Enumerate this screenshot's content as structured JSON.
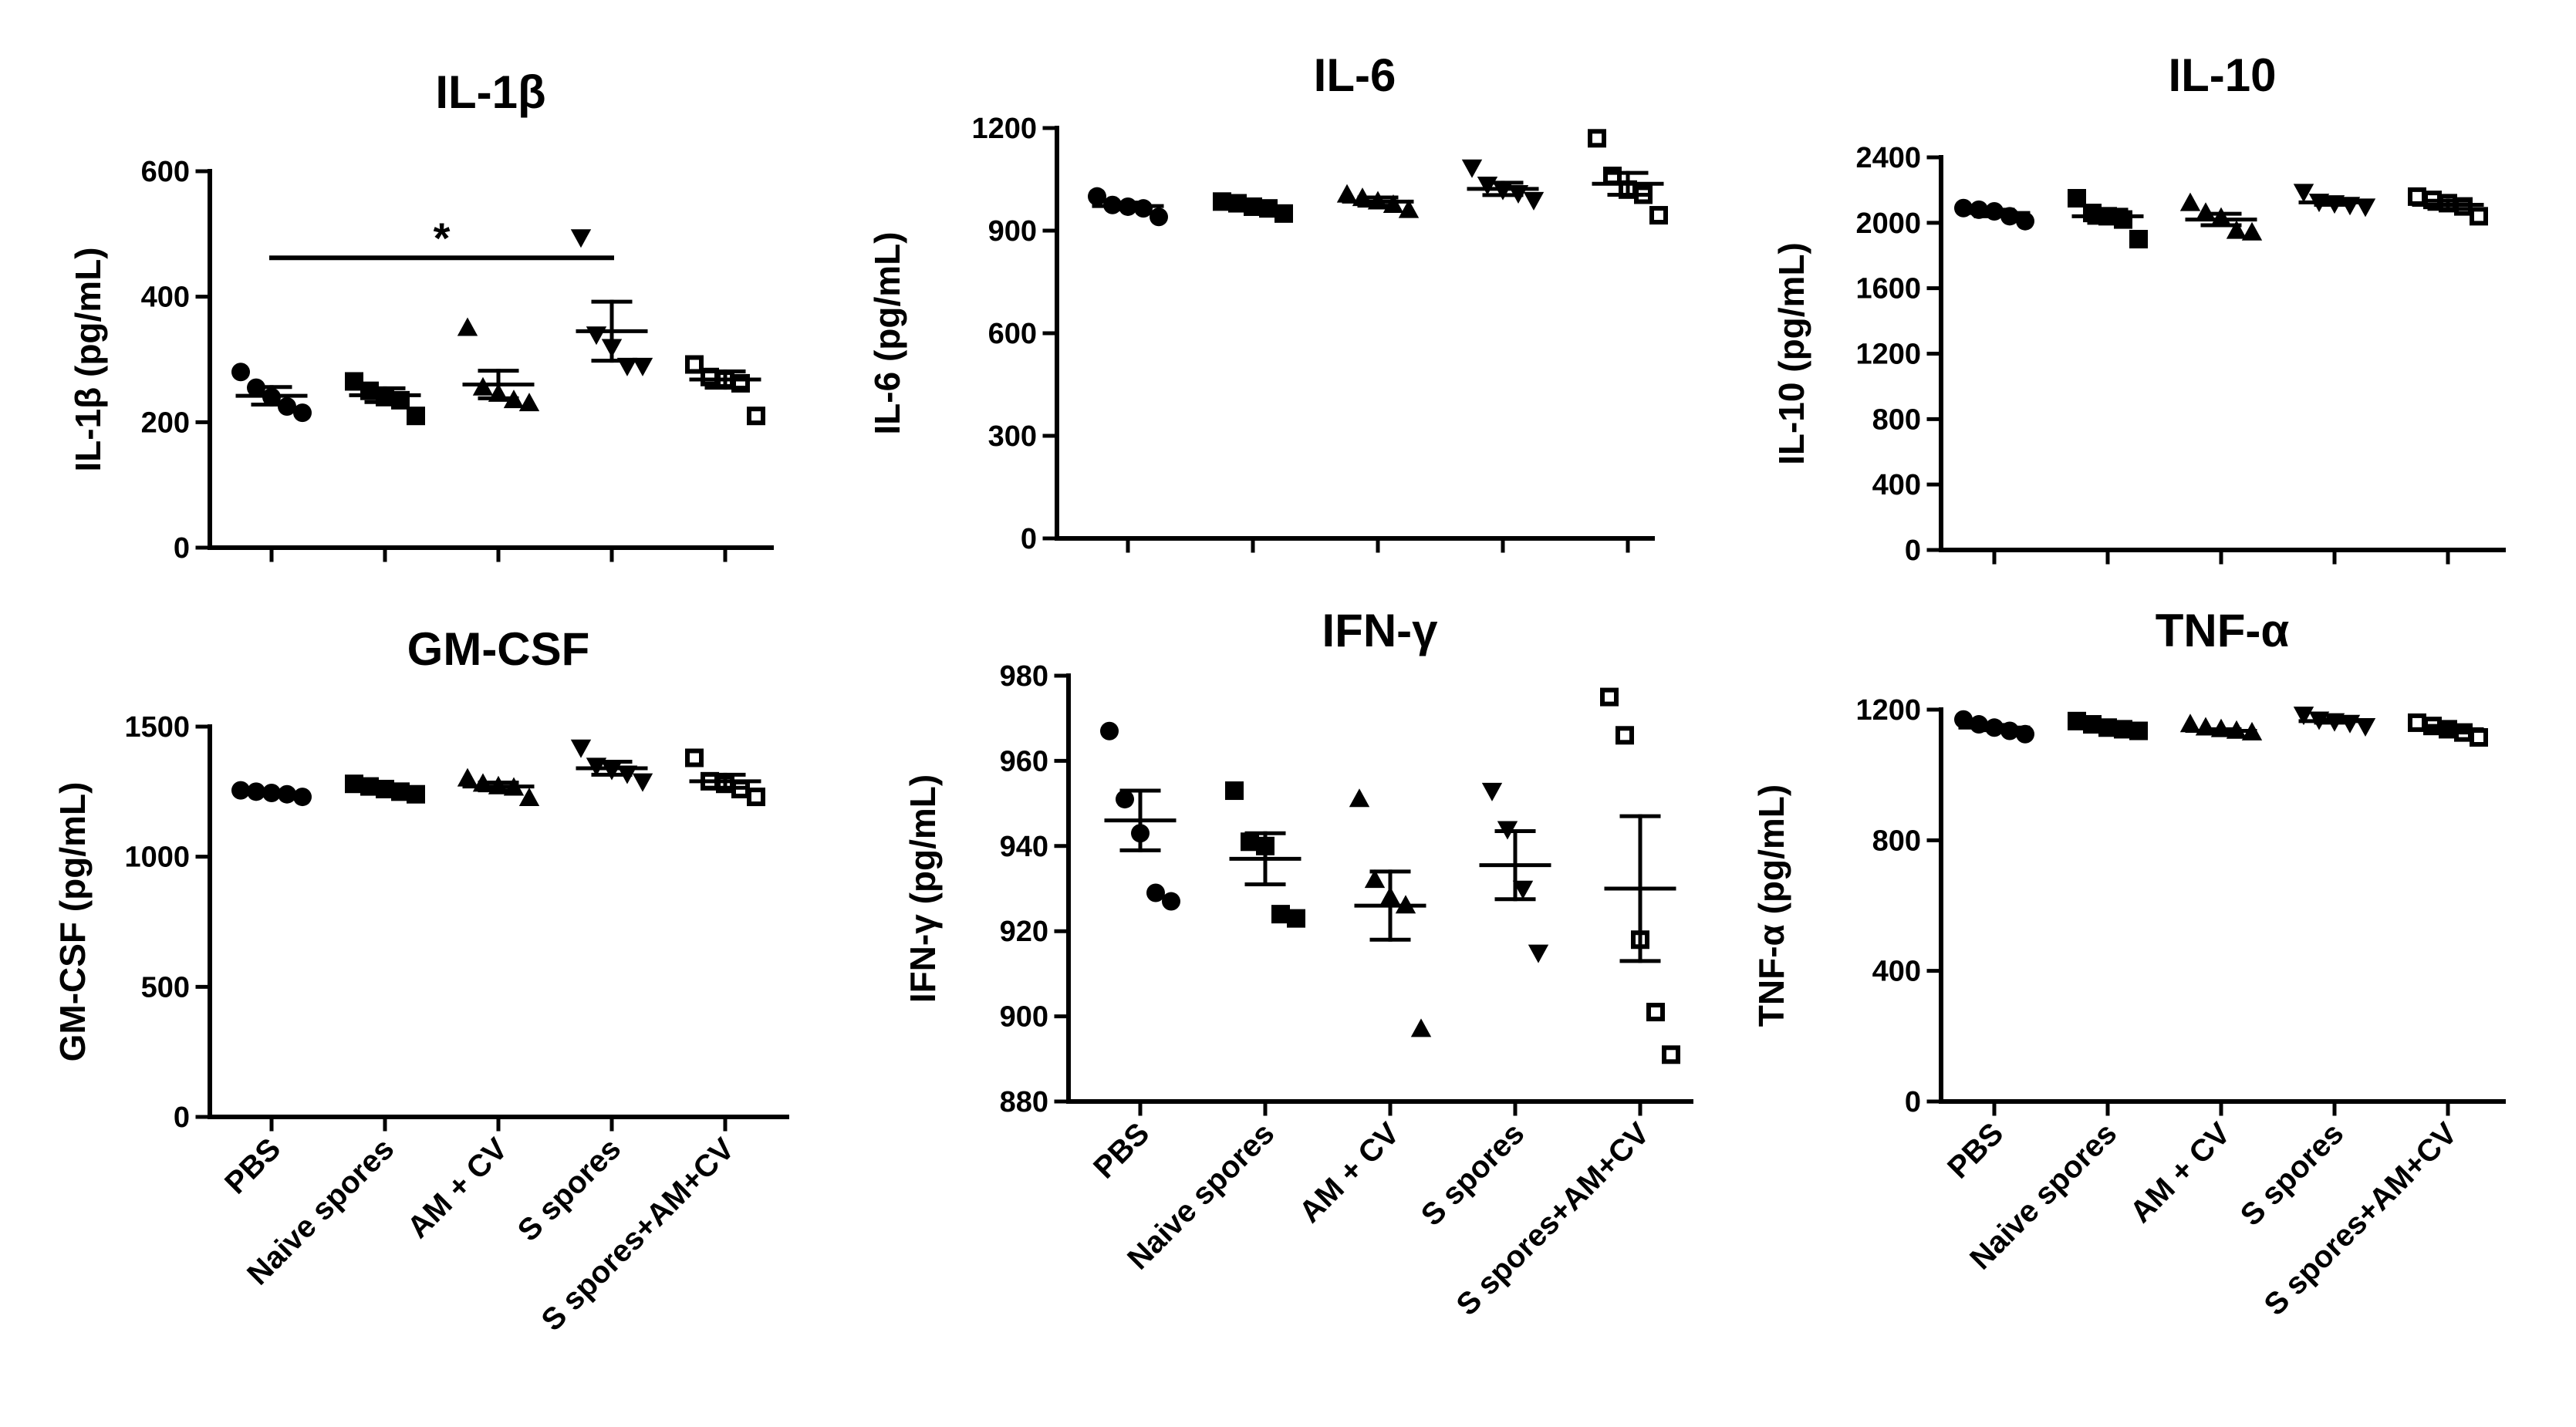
{
  "figure": {
    "categories": [
      "PBS",
      "Naive spores",
      "AM + CV",
      "S spores",
      "S spores+AM+CV"
    ],
    "marker_shapes": [
      "circle",
      "square",
      "triangle-up",
      "triangle-down",
      "open-square"
    ],
    "colors": {
      "ink": "#000000",
      "background": "#ffffff"
    }
  },
  "chart_data": [
    {
      "id": "il1b",
      "type": "scatter",
      "title": "IL-1β",
      "xlabel": "",
      "ylabel": "IL-1β  (pg/mL)",
      "ylim": [
        0,
        600
      ],
      "yticks": [
        0,
        200,
        400,
        600
      ],
      "ytick_labels": [
        "0",
        "200",
        "400",
        "600"
      ],
      "show_x_labels": false,
      "series": [
        {
          "name": "PBS",
          "marker": "circle",
          "mean": 242,
          "sem": 14,
          "values": [
            280,
            255,
            240,
            225,
            215
          ]
        },
        {
          "name": "Naive spores",
          "marker": "square",
          "mean": 243,
          "sem": 11,
          "values": [
            265,
            250,
            240,
            235,
            210
          ]
        },
        {
          "name": "AM + CV",
          "marker": "triangle-up",
          "mean": 260,
          "sem": 22,
          "values": [
            350,
            255,
            245,
            235,
            230
          ]
        },
        {
          "name": "S spores",
          "marker": "triangle-down",
          "mean": 345,
          "sem": 47,
          "values": [
            495,
            340,
            320,
            290,
            290
          ]
        },
        {
          "name": "S spores+AM+CV",
          "marker": "open-square",
          "mean": 268,
          "sem": 13,
          "values": [
            292,
            272,
            268,
            262,
            210
          ]
        }
      ],
      "significance": {
        "from": 0,
        "to": 3,
        "value": 462,
        "label": "*"
      }
    },
    {
      "id": "il6",
      "type": "scatter",
      "title": "IL-6",
      "xlabel": "",
      "ylabel": "IL-6 (pg/mL)",
      "ylim": [
        0,
        1200
      ],
      "yticks": [
        0,
        300,
        600,
        900,
        1200
      ],
      "ytick_labels": [
        "0",
        "300",
        "600",
        "900",
        "1200"
      ],
      "show_x_labels": false,
      "series": [
        {
          "name": "PBS",
          "marker": "circle",
          "mean": 972,
          "sem": 10,
          "values": [
            1000,
            975,
            970,
            965,
            940
          ]
        },
        {
          "name": "Naive spores",
          "marker": "square",
          "mean": 970,
          "sem": 7,
          "values": [
            985,
            980,
            970,
            965,
            950
          ]
        },
        {
          "name": "AM + CV",
          "marker": "triangle-up",
          "mean": 985,
          "sem": 12,
          "values": [
            1005,
            995,
            985,
            975,
            960
          ]
        },
        {
          "name": "S spores",
          "marker": "triangle-down",
          "mean": 1022,
          "sem": 18,
          "values": [
            1085,
            1035,
            1020,
            1010,
            990
          ]
        },
        {
          "name": "S spores+AM+CV",
          "marker": "open-square",
          "mean": 1037,
          "sem": 32,
          "values": [
            1170,
            1060,
            1020,
            1005,
            945
          ]
        }
      ]
    },
    {
      "id": "il10",
      "type": "scatter",
      "title": "IL-10",
      "xlabel": "",
      "ylabel": "IL-10 (pg/mL)",
      "ylim": [
        0,
        2400
      ],
      "yticks": [
        0,
        400,
        800,
        1200,
        1600,
        2000,
        2400
      ],
      "ytick_labels": [
        "0",
        "400",
        "800",
        "1200",
        "1600",
        "2000",
        "2400"
      ],
      "show_x_labels": false,
      "series": [
        {
          "name": "PBS",
          "marker": "circle",
          "mean": 2060,
          "sem": 20,
          "values": [
            2090,
            2080,
            2070,
            2040,
            2010
          ]
        },
        {
          "name": "Naive spores",
          "marker": "square",
          "mean": 2040,
          "sem": 40,
          "values": [
            2150,
            2060,
            2040,
            2020,
            1900
          ]
        },
        {
          "name": "AM + CV",
          "marker": "triangle-up",
          "mean": 2020,
          "sem": 35,
          "values": [
            2120,
            2060,
            2030,
            1950,
            1940
          ]
        },
        {
          "name": "S spores",
          "marker": "triangle-down",
          "mean": 2125,
          "sem": 15,
          "values": [
            2190,
            2130,
            2120,
            2110,
            2100
          ]
        },
        {
          "name": "S spores+AM+CV",
          "marker": "open-square",
          "mean": 2110,
          "sem": 25,
          "values": [
            2160,
            2140,
            2120,
            2100,
            2040
          ]
        }
      ]
    },
    {
      "id": "gmcsf",
      "type": "scatter",
      "title": "GM-CSF",
      "xlabel": "",
      "ylabel": "GM-CSF (pg/mL)",
      "ylim": [
        0,
        1500
      ],
      "yticks": [
        0,
        500,
        1000,
        1500
      ],
      "ytick_labels": [
        "0",
        "500",
        "1000",
        "1500"
      ],
      "show_x_labels": true,
      "series": [
        {
          "name": "PBS",
          "marker": "circle",
          "mean": 1242,
          "sem": 7,
          "values": [
            1255,
            1250,
            1245,
            1240,
            1230
          ]
        },
        {
          "name": "Naive spores",
          "marker": "square",
          "mean": 1260,
          "sem": 10,
          "values": [
            1280,
            1270,
            1260,
            1250,
            1240
          ]
        },
        {
          "name": "AM + CV",
          "marker": "triangle-up",
          "mean": 1270,
          "sem": 15,
          "values": [
            1300,
            1280,
            1270,
            1265,
            1225
          ]
        },
        {
          "name": "S spores",
          "marker": "triangle-down",
          "mean": 1340,
          "sem": 25,
          "values": [
            1420,
            1350,
            1335,
            1320,
            1290
          ]
        },
        {
          "name": "S spores+AM+CV",
          "marker": "open-square",
          "mean": 1290,
          "sem": 25,
          "values": [
            1380,
            1290,
            1280,
            1260,
            1230
          ]
        }
      ]
    },
    {
      "id": "ifng",
      "type": "scatter",
      "title": "IFN-γ",
      "xlabel": "",
      "ylabel": "IFN-γ (pg/mL)",
      "ylim": [
        880,
        980
      ],
      "yticks": [
        880,
        900,
        920,
        940,
        960,
        980
      ],
      "ytick_labels": [
        "880",
        "900",
        "920",
        "940",
        "960",
        "980"
      ],
      "show_x_labels": true,
      "series": [
        {
          "name": "PBS",
          "marker": "circle",
          "mean": 946,
          "sem": 7,
          "values": [
            967,
            951,
            943,
            929,
            927
          ]
        },
        {
          "name": "Naive spores",
          "marker": "square",
          "mean": 937,
          "sem": 6,
          "values": [
            953,
            941,
            940,
            924,
            923
          ]
        },
        {
          "name": "AM + CV",
          "marker": "triangle-up",
          "mean": 926,
          "sem": 8,
          "values": [
            951,
            932,
            928,
            926,
            897
          ]
        },
        {
          "name": "S spores",
          "marker": "triangle-down",
          "mean": 935.5,
          "sem": 8,
          "values": [
            953,
            944,
            930,
            915
          ]
        },
        {
          "name": "S spores+AM+CV",
          "marker": "open-square",
          "mean": 930,
          "sem": 17,
          "values": [
            975,
            966,
            918,
            901,
            891
          ]
        }
      ]
    },
    {
      "id": "tnfa",
      "type": "scatter",
      "title": "TNF-α",
      "xlabel": "",
      "ylabel": "TNF-α  (pg/mL)",
      "ylim": [
        0,
        1200
      ],
      "yticks": [
        0,
        400,
        800,
        1200
      ],
      "ytick_labels": [
        "0",
        "400",
        "800",
        "1200"
      ],
      "show_x_labels": true,
      "series": [
        {
          "name": "PBS",
          "marker": "circle",
          "mean": 1145,
          "sem": 8,
          "values": [
            1170,
            1155,
            1145,
            1135,
            1125
          ]
        },
        {
          "name": "Naive spores",
          "marker": "square",
          "mean": 1145,
          "sem": 6,
          "values": [
            1165,
            1155,
            1145,
            1140,
            1135
          ]
        },
        {
          "name": "AM + CV",
          "marker": "triangle-up",
          "mean": 1135,
          "sem": 5,
          "values": [
            1155,
            1145,
            1140,
            1135,
            1130
          ]
        },
        {
          "name": "S spores",
          "marker": "triangle-down",
          "mean": 1165,
          "sem": 5,
          "values": [
            1185,
            1170,
            1165,
            1160,
            1150
          ]
        },
        {
          "name": "S spores+AM+CV",
          "marker": "open-square",
          "mean": 1140,
          "sem": 10,
          "values": [
            1160,
            1150,
            1140,
            1130,
            1115
          ]
        }
      ]
    }
  ]
}
